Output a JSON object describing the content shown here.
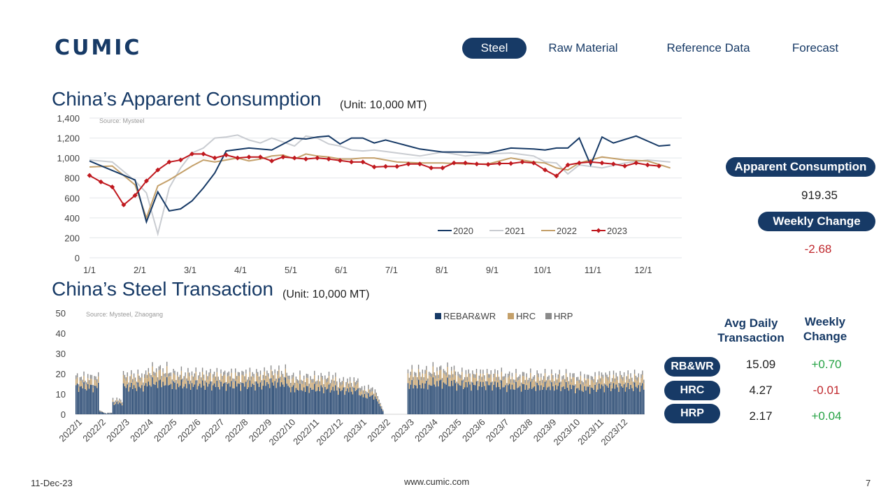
{
  "brand": {
    "logo_text": "CUMIC"
  },
  "nav": {
    "tabs": [
      {
        "label": "Steel",
        "active": true
      },
      {
        "label": "Raw Material",
        "active": false
      },
      {
        "label": "Reference Data",
        "active": false
      },
      {
        "label": "Forecast",
        "active": false
      }
    ]
  },
  "consumption": {
    "title": "China’s Apparent Consumption",
    "unit": "(Unit: 10,000 MT)",
    "source": "Source: Mysteel",
    "pill_label": "Apparent Consumption",
    "value": "919.35",
    "change_label": "Weekly Change",
    "change_value": "-2.68"
  },
  "transaction": {
    "title": "China’s Steel Transaction",
    "unit": "(Unit: 10,000 MT)",
    "source": "Source: Mysteel, Zhaogang",
    "col_avg": "Avg Daily Transaction",
    "col_change": "Weekly Change",
    "rows": [
      {
        "label": "RB&WR",
        "avg": "15.09",
        "change": "+0.70"
      },
      {
        "label": "HRC",
        "avg": "4.27",
        "change": "-0.01"
      },
      {
        "label": "HRP",
        "avg": "2.17",
        "change": "+0.04"
      }
    ]
  },
  "footer": {
    "date": "11-Dec-23",
    "url": "www.cumic.com",
    "page": "7"
  },
  "colors": {
    "navy": "#173a66",
    "c2021": "#c9ccd1",
    "c2022": "#c4a06a",
    "c2023": "#c0191f",
    "rebar": "#173a66",
    "hrc": "#c4a06a",
    "hrp": "#8a8a8a"
  },
  "chart_data": [
    {
      "type": "line",
      "ylim": [
        0,
        1400
      ],
      "yticks": [
        "0",
        "200",
        "400",
        "600",
        "800",
        "1,000",
        "1,200",
        "1,400"
      ],
      "x_tick_labels": [
        "1/1",
        "2/1",
        "3/1",
        "4/1",
        "5/1",
        "6/1",
        "7/1",
        "8/1",
        "9/1",
        "10/1",
        "11/1",
        "12/1"
      ],
      "grid": true,
      "legend": "bottom-right",
      "series": [
        {
          "name": "2020",
          "week": [
            1,
            5,
            6,
            7,
            8,
            9,
            10,
            11,
            12,
            13,
            15,
            17,
            19,
            20,
            21,
            22,
            23,
            24,
            25,
            26,
            27,
            28,
            29,
            30,
            32,
            34,
            36,
            38,
            40,
            41,
            42,
            43,
            44,
            45,
            46,
            47,
            49,
            51,
            52
          ],
          "values": [
            970,
            780,
            360,
            660,
            470,
            490,
            570,
            700,
            850,
            1070,
            1100,
            1080,
            1200,
            1190,
            1210,
            1220,
            1140,
            1200,
            1200,
            1150,
            1180,
            1150,
            1120,
            1090,
            1060,
            1060,
            1050,
            1100,
            1090,
            1080,
            1100,
            1100,
            1200,
            930,
            1210,
            1150,
            1220,
            1120,
            1130
          ]
        },
        {
          "name": "2021",
          "week": [
            1,
            3,
            5,
            6,
            7,
            8,
            9,
            10,
            11,
            12,
            13,
            14,
            15,
            16,
            17,
            18,
            19,
            20,
            21,
            22,
            23,
            24,
            25,
            26,
            28,
            30,
            32,
            34,
            36,
            38,
            40,
            41,
            42,
            43,
            44,
            46,
            48,
            50,
            52
          ],
          "values": [
            980,
            960,
            770,
            650,
            240,
            700,
            900,
            1050,
            1100,
            1200,
            1210,
            1230,
            1180,
            1150,
            1200,
            1160,
            1120,
            1220,
            1200,
            1140,
            1120,
            1080,
            1070,
            1080,
            1050,
            1020,
            1060,
            1020,
            1040,
            1050,
            1020,
            960,
            950,
            840,
            930,
            900,
            950,
            980,
            960
          ]
        },
        {
          "name": "2022",
          "week": [
            1,
            3,
            5,
            6,
            7,
            8,
            9,
            10,
            11,
            12,
            13,
            14,
            15,
            16,
            17,
            18,
            19,
            20,
            21,
            22,
            23,
            24,
            25,
            26,
            28,
            30,
            32,
            34,
            36,
            38,
            40,
            41,
            42,
            43,
            44,
            46,
            48,
            50,
            52
          ],
          "values": [
            910,
            920,
            730,
            400,
            720,
            780,
            850,
            920,
            980,
            960,
            980,
            1000,
            970,
            990,
            1020,
            1030,
            990,
            1040,
            1020,
            1010,
            990,
            990,
            1000,
            1000,
            960,
            950,
            950,
            940,
            940,
            1000,
            960,
            950,
            900,
            880,
            950,
            1010,
            980,
            970,
            900
          ]
        },
        {
          "name": "2023",
          "week": [
            1,
            2,
            3,
            4,
            5,
            6,
            7,
            8,
            9,
            10,
            11,
            12,
            13,
            14,
            15,
            16,
            17,
            18,
            19,
            20,
            21,
            22,
            23,
            24,
            25,
            26,
            27,
            28,
            29,
            30,
            31,
            32,
            33,
            34,
            35,
            36,
            37,
            38,
            39,
            40,
            41,
            42,
            43,
            44,
            45,
            46,
            47,
            48,
            49,
            50,
            51
          ],
          "values": [
            825,
            760,
            710,
            530,
            625,
            770,
            880,
            960,
            980,
            1040,
            1040,
            1000,
            1030,
            1000,
            1010,
            1010,
            970,
            1010,
            1000,
            990,
            1000,
            990,
            975,
            960,
            960,
            910,
            915,
            915,
            940,
            940,
            900,
            900,
            950,
            950,
            940,
            935,
            945,
            945,
            960,
            950,
            880,
            820,
            930,
            950,
            960,
            950,
            940,
            920,
            950,
            930,
            920
          ]
        }
      ]
    },
    {
      "type": "bar",
      "stacked": true,
      "ylim": [
        0,
        50
      ],
      "yticks": [
        "0",
        "10",
        "20",
        "30",
        "40",
        "50"
      ],
      "x_tick_labels": [
        "2022/1",
        "2022/2",
        "2022/3",
        "2022/4",
        "2022/5",
        "2022/6",
        "2022/7",
        "2022/8",
        "2022/9",
        "2022/10",
        "2022/11",
        "2022/12",
        "2023/1",
        "2023/2",
        "2023/3",
        "2023/4",
        "2023/5",
        "2023/6",
        "2023/7",
        "2023/8",
        "2023/9",
        "2023/10",
        "2023/11",
        "2023/12"
      ],
      "legend": "top-center",
      "series": [
        {
          "name": "REBAR&WR",
          "monthly_level": [
            15,
            6,
            15,
            17,
            16,
            16,
            16,
            16,
            17,
            14,
            14,
            13,
            10,
            0,
            16,
            17,
            16,
            16,
            15,
            15,
            15,
            14,
            15,
            15
          ]
        },
        {
          "name": "HRC",
          "monthly_level": [
            3,
            1,
            4,
            5,
            4,
            4,
            4,
            4,
            4,
            4,
            4,
            3,
            2,
            0,
            5,
            5,
            4,
            4,
            4,
            4,
            4,
            4,
            4,
            4
          ]
        },
        {
          "name": "HRP",
          "monthly_level": [
            2,
            1,
            2,
            2,
            2,
            2,
            2,
            2,
            2,
            2,
            2,
            2,
            2,
            0,
            2,
            2,
            2,
            2,
            2,
            2,
            2,
            2,
            2,
            2
          ]
        }
      ]
    }
  ]
}
